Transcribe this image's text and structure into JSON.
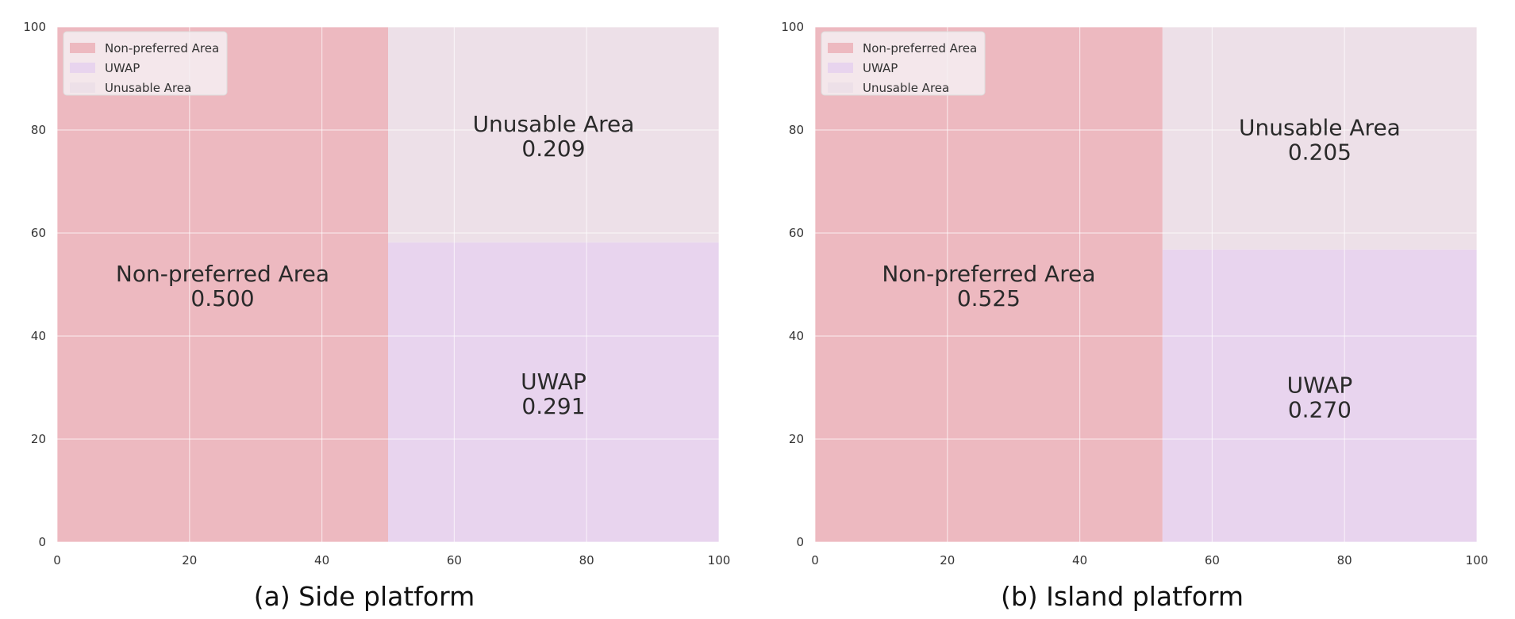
{
  "chart_data": [
    {
      "type": "area",
      "title": "(a) Side platform",
      "xlim": [
        0,
        100
      ],
      "ylim": [
        0,
        100
      ],
      "x_ticks": [
        0,
        20,
        40,
        60,
        80,
        100
      ],
      "y_ticks": [
        0,
        20,
        40,
        60,
        80,
        100
      ],
      "grid": true,
      "legend_position": "top-left",
      "legend": [
        "Non-preferred Area",
        "UWAP",
        "Unusable Area"
      ],
      "regions": [
        {
          "name": "Non-preferred Area",
          "value_label": "0.500",
          "x": [
            0,
            50
          ],
          "y": [
            0,
            100
          ],
          "color": "#edb9c0"
        },
        {
          "name": "UWAP",
          "value_label": "0.291",
          "x": [
            50,
            100
          ],
          "y": [
            0,
            58.2
          ],
          "color": "#e8d4ee"
        },
        {
          "name": "Unusable Area",
          "value_label": "0.209",
          "x": [
            50,
            100
          ],
          "y": [
            58.2,
            100
          ],
          "color": "#ede0e8"
        }
      ]
    },
    {
      "type": "area",
      "title": "(b) Island platform",
      "xlim": [
        0,
        100
      ],
      "ylim": [
        0,
        100
      ],
      "x_ticks": [
        0,
        20,
        40,
        60,
        80,
        100
      ],
      "y_ticks": [
        0,
        20,
        40,
        60,
        80,
        100
      ],
      "grid": true,
      "legend_position": "top-left",
      "legend": [
        "Non-preferred Area",
        "UWAP",
        "Unusable Area"
      ],
      "regions": [
        {
          "name": "Non-preferred Area",
          "value_label": "0.525",
          "x": [
            0,
            52.5
          ],
          "y": [
            0,
            100
          ],
          "color": "#edb9c0"
        },
        {
          "name": "UWAP",
          "value_label": "0.270",
          "x": [
            52.5,
            100
          ],
          "y": [
            0,
            56.8
          ],
          "color": "#e8d4ee"
        },
        {
          "name": "Unusable Area",
          "value_label": "0.205",
          "x": [
            52.5,
            100
          ],
          "y": [
            56.8,
            100
          ],
          "color": "#ede0e8"
        }
      ]
    }
  ]
}
